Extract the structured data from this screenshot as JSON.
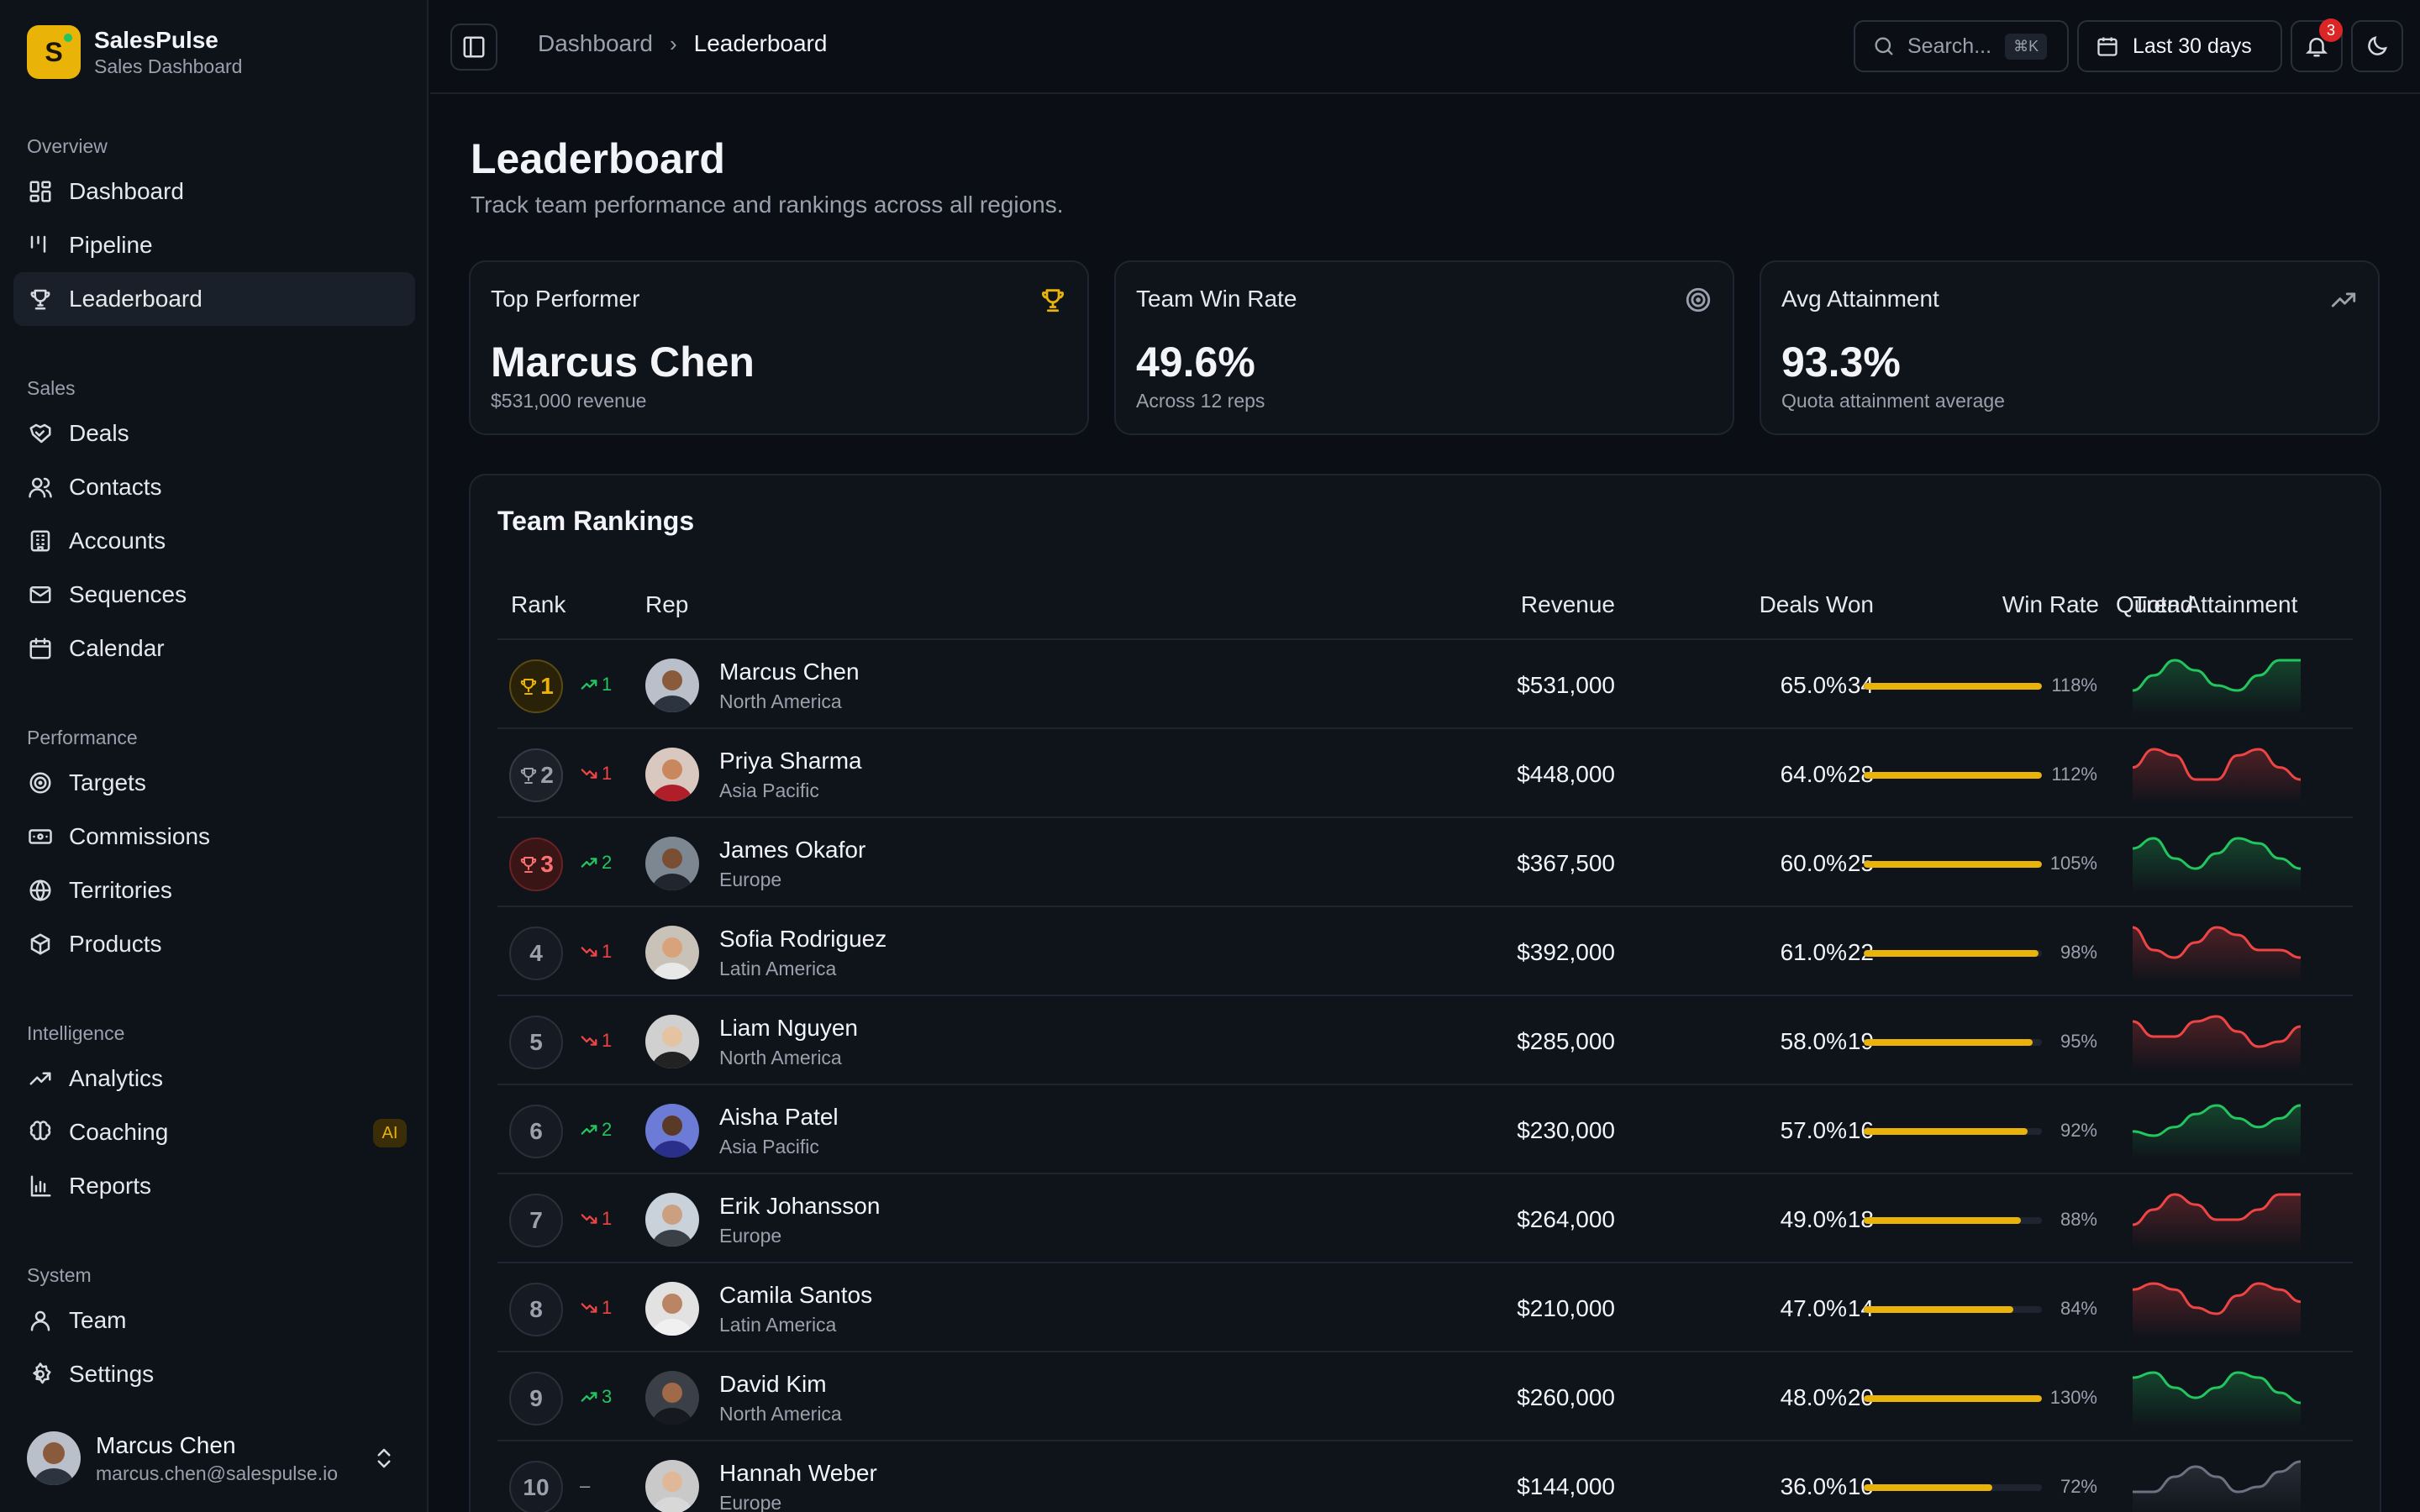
{
  "app": {
    "name": "SalesPulse",
    "subtitle": "Sales Dashboard",
    "logo_letter": "S"
  },
  "nav": {
    "overview": {
      "title": "Overview",
      "items": [
        {
          "label": "Dashboard",
          "icon": "dashboard-icon"
        },
        {
          "label": "Pipeline",
          "icon": "pipeline-icon"
        },
        {
          "label": "Leaderboard",
          "icon": "trophy-icon",
          "active": true
        }
      ]
    },
    "sales": {
      "title": "Sales",
      "items": [
        {
          "label": "Deals",
          "icon": "handshake-icon"
        },
        {
          "label": "Contacts",
          "icon": "users-icon"
        },
        {
          "label": "Accounts",
          "icon": "building-icon"
        },
        {
          "label": "Sequences",
          "icon": "mail-icon"
        },
        {
          "label": "Calendar",
          "icon": "calendar-icon"
        }
      ]
    },
    "performance": {
      "title": "Performance",
      "items": [
        {
          "label": "Targets",
          "icon": "target-icon"
        },
        {
          "label": "Commissions",
          "icon": "banknote-icon"
        },
        {
          "label": "Territories",
          "icon": "globe-icon"
        },
        {
          "label": "Products",
          "icon": "package-icon"
        }
      ]
    },
    "intelligence": {
      "title": "Intelligence",
      "items": [
        {
          "label": "Analytics",
          "icon": "trending-up-icon"
        },
        {
          "label": "Coaching",
          "icon": "brain-icon",
          "badge": "AI"
        },
        {
          "label": "Reports",
          "icon": "bar-chart-icon"
        }
      ]
    },
    "system": {
      "title": "System",
      "items": [
        {
          "label": "Team",
          "icon": "user-icon"
        },
        {
          "label": "Settings",
          "icon": "gear-icon"
        }
      ]
    }
  },
  "user": {
    "name": "Marcus Chen",
    "email": "marcus.chen@salespulse.io"
  },
  "topbar": {
    "breadcrumb": [
      "Dashboard",
      "Leaderboard"
    ],
    "search_placeholder": "Search...",
    "search_shortcut": "⌘K",
    "date_range": "Last 30 days",
    "notification_count": "3"
  },
  "page": {
    "title": "Leaderboard",
    "subtitle": "Track team performance and rankings across all regions."
  },
  "stats": [
    {
      "label": "Top Performer",
      "value": "Marcus Chen",
      "sub": "$531,000 revenue",
      "icon": "trophy-icon",
      "icon_color": "#eab308"
    },
    {
      "label": "Team Win Rate",
      "value": "49.6%",
      "sub": "Across 12 reps",
      "icon": "target-icon",
      "icon_color": "#9aa1ad"
    },
    {
      "label": "Avg Attainment",
      "value": "93.3%",
      "sub": "Quota attainment average",
      "icon": "trending-up-icon",
      "icon_color": "#9aa1ad"
    }
  ],
  "rankings": {
    "title": "Team Rankings",
    "columns": [
      "Rank",
      "Rep",
      "Revenue",
      "Deals Won",
      "Win Rate",
      "Quota Attainment",
      "Trend"
    ],
    "rows": [
      {
        "rank": "1",
        "medal": "gold",
        "change_dir": "up",
        "change": "1",
        "name": "Marcus Chen",
        "region": "North America",
        "revenue": "$531,000",
        "deals": "34",
        "win_rate": "65.0%",
        "quota": "118%",
        "quota_fill": 1.0,
        "trend_color": "#22c55e",
        "trend": [
          6,
          9,
          12,
          10,
          7,
          6,
          9,
          12,
          12
        ]
      },
      {
        "rank": "2",
        "medal": "silver",
        "change_dir": "down",
        "change": "1",
        "name": "Priya Sharma",
        "region": "Asia Pacific",
        "revenue": "$448,000",
        "deals": "28",
        "win_rate": "64.0%",
        "quota": "112%",
        "quota_fill": 1.0,
        "trend_color": "#ef4444",
        "trend": [
          9,
          12,
          11,
          7,
          7,
          11,
          12,
          9,
          7
        ]
      },
      {
        "rank": "3",
        "medal": "bronze",
        "change_dir": "up",
        "change": "2",
        "name": "James Okafor",
        "region": "Europe",
        "revenue": "$367,500",
        "deals": "25",
        "win_rate": "60.0%",
        "quota": "105%",
        "quota_fill": 1.0,
        "trend_color": "#22c55e",
        "trend": [
          10,
          12,
          8,
          6,
          9,
          12,
          11,
          8,
          6
        ]
      },
      {
        "rank": "4",
        "medal": "none",
        "change_dir": "down",
        "change": "1",
        "name": "Sofia Rodriguez",
        "region": "Latin America",
        "revenue": "$392,000",
        "deals": "22",
        "win_rate": "61.0%",
        "quota": "98%",
        "quota_fill": 0.98,
        "trend_color": "#ef4444",
        "trend": [
          12,
          9,
          8,
          10,
          12,
          11,
          9,
          9,
          8
        ]
      },
      {
        "rank": "5",
        "medal": "none",
        "change_dir": "down",
        "change": "1",
        "name": "Liam Nguyen",
        "region": "North America",
        "revenue": "$285,000",
        "deals": "19",
        "win_rate": "58.0%",
        "quota": "95%",
        "quota_fill": 0.95,
        "trend_color": "#ef4444",
        "trend": [
          12,
          9,
          9,
          12,
          13,
          10,
          7,
          8,
          11
        ]
      },
      {
        "rank": "6",
        "medal": "none",
        "change_dir": "up",
        "change": "2",
        "name": "Aisha Patel",
        "region": "Asia Pacific",
        "revenue": "$230,000",
        "deals": "16",
        "win_rate": "57.0%",
        "quota": "92%",
        "quota_fill": 0.92,
        "trend_color": "#22c55e",
        "trend": [
          7,
          6,
          8,
          11,
          13,
          10,
          8,
          10,
          13
        ]
      },
      {
        "rank": "7",
        "medal": "none",
        "change_dir": "down",
        "change": "1",
        "name": "Erik Johansson",
        "region": "Europe",
        "revenue": "$264,000",
        "deals": "18",
        "win_rate": "49.0%",
        "quota": "88%",
        "quota_fill": 0.88,
        "trend_color": "#ef4444",
        "trend": [
          7,
          10,
          13,
          11,
          8,
          8,
          10,
          13,
          13
        ]
      },
      {
        "rank": "8",
        "medal": "none",
        "change_dir": "down",
        "change": "1",
        "name": "Camila Santos",
        "region": "Latin America",
        "revenue": "$210,000",
        "deals": "14",
        "win_rate": "47.0%",
        "quota": "84%",
        "quota_fill": 0.84,
        "trend_color": "#ef4444",
        "trend": [
          11,
          12,
          11,
          8,
          7,
          10,
          12,
          11,
          9
        ]
      },
      {
        "rank": "9",
        "medal": "none",
        "change_dir": "up",
        "change": "3",
        "name": "David Kim",
        "region": "North America",
        "revenue": "$260,000",
        "deals": "20",
        "win_rate": "48.0%",
        "quota": "130%",
        "quota_fill": 1.0,
        "trend_color": "#22c55e",
        "trend": [
          12,
          13,
          10,
          8,
          10,
          13,
          12,
          9,
          7
        ]
      },
      {
        "rank": "10",
        "medal": "none",
        "change_dir": "flat",
        "change": "–",
        "name": "Hannah Weber",
        "region": "Europe",
        "revenue": "$144,000",
        "deals": "10",
        "win_rate": "36.0%",
        "quota": "72%",
        "quota_fill": 0.72,
        "trend_color": "#6b7280",
        "trend": [
          7,
          7,
          10,
          12,
          10,
          7,
          8,
          11,
          13
        ]
      }
    ]
  }
}
